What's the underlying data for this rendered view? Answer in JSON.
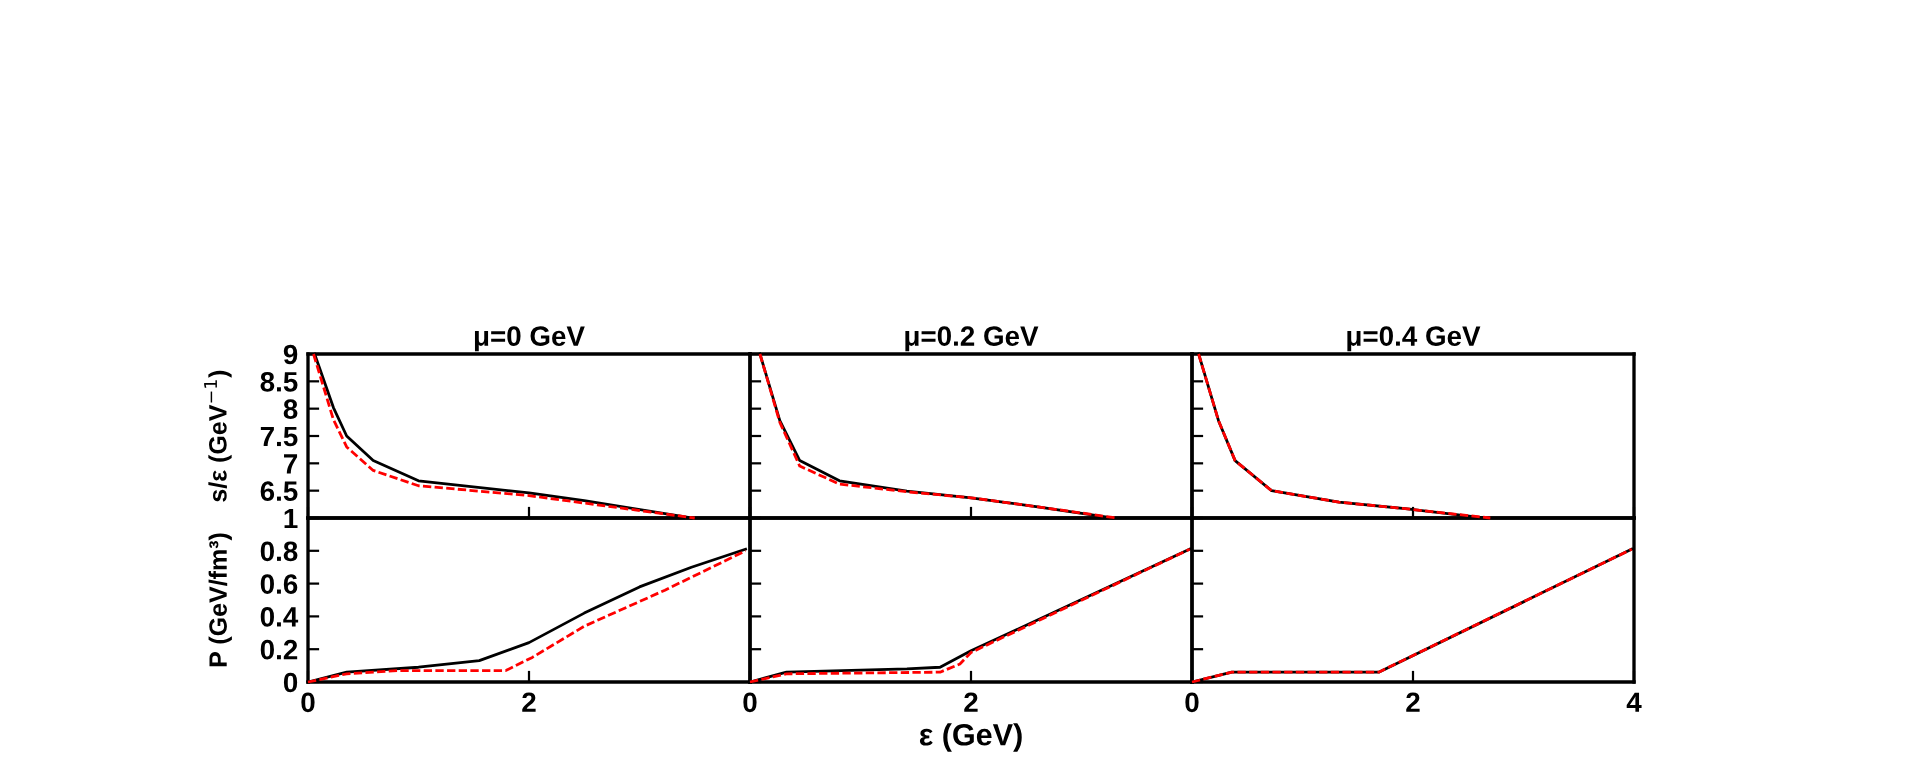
{
  "chart_data": [
    {
      "type": "line",
      "title": "μ=0 GeV",
      "ylabel": "s/ε (GeV$^{−1}$)",
      "xlim": [
        0,
        4
      ],
      "xticks": [
        0,
        2,
        4
      ],
      "ylim": [
        6,
        9
      ],
      "yticks": [
        {
          "value": 6,
          "label": null
        },
        6.5,
        7,
        7.5,
        8,
        8.5,
        9
      ],
      "tick_labels": "y",
      "series": [
        {
          "color": "#000000",
          "line_style": "solid",
          "x": [
            0.06,
            0.23,
            0.35,
            0.59,
            1.0,
            2.0,
            2.5,
            3.47
          ],
          "values": [
            9,
            8.02,
            7.5,
            7.05,
            6.68,
            6.46,
            6.32,
            6.0
          ]
        },
        {
          "color": "#ff0000",
          "line_style": "dashed",
          "x": [
            0.05,
            0.23,
            0.35,
            0.59,
            1.0,
            2.0,
            3.5
          ],
          "values": [
            9,
            7.8,
            7.3,
            6.87,
            6.59,
            6.41,
            6.0
          ]
        }
      ]
    },
    {
      "type": "line",
      "title": "μ=0.2 GeV",
      "xlim": [
        0,
        4
      ],
      "xticks": [
        0,
        2,
        4
      ],
      "ylim": [
        6,
        9
      ],
      "yticks": [
        6,
        6.5,
        7,
        7.5,
        8,
        8.5,
        9
      ],
      "tick_labels": false,
      "series": [
        {
          "color": "#000000",
          "line_style": "solid",
          "x": [
            0.09,
            0.27,
            0.45,
            0.81,
            1.42,
            2.0,
            2.62,
            3.28
          ],
          "values": [
            9,
            7.78,
            7.05,
            6.68,
            6.49,
            6.37,
            6.2,
            6.0
          ]
        },
        {
          "color": "#ff0000",
          "line_style": "dashed",
          "x": [
            0.09,
            0.27,
            0.45,
            0.81,
            1.42,
            2.0,
            2.62,
            3.32
          ],
          "values": [
            9,
            7.75,
            6.95,
            6.62,
            6.48,
            6.37,
            6.2,
            6.0
          ]
        }
      ]
    },
    {
      "type": "line",
      "title": "μ=0.4 GeV",
      "xlim": [
        0,
        4
      ],
      "xticks": [
        0,
        2,
        4
      ],
      "ylim": [
        6,
        9
      ],
      "yticks": [
        6,
        6.5,
        7,
        7.5,
        8,
        8.5,
        9
      ],
      "tick_labels": false,
      "series": [
        {
          "color": "#000000",
          "line_style": "solid",
          "x": [
            0.06,
            0.24,
            0.39,
            0.72,
            1.33,
            1.93,
            2.65
          ],
          "values": [
            9,
            7.78,
            7.05,
            6.5,
            6.29,
            6.17,
            6.0
          ]
        },
        {
          "color": "#ff0000",
          "line_style": "dashed",
          "x": [
            0.06,
            0.24,
            0.39,
            0.72,
            1.33,
            1.93,
            2.7
          ],
          "values": [
            9,
            7.78,
            7.05,
            6.5,
            6.29,
            6.17,
            6.0
          ]
        }
      ]
    },
    {
      "type": "line",
      "ylabel": "P (GeV/fm³)",
      "xlim": [
        0,
        4
      ],
      "xticks": [
        0,
        2,
        {
          "value": 4,
          "label": null
        }
      ],
      "ylim": [
        0,
        1
      ],
      "yticks": [
        0,
        0.2,
        0.4,
        0.6,
        0.8,
        1
      ],
      "series": [
        {
          "color": "#000000",
          "line_style": "solid",
          "x": [
            0,
            0.35,
            1.0,
            1.55,
            2.0,
            2.5,
            3.0,
            3.47,
            3.96
          ],
          "values": [
            0,
            0.06,
            0.09,
            0.13,
            0.24,
            0.42,
            0.58,
            0.7,
            0.81
          ]
        },
        {
          "color": "#ff0000",
          "line_style": "dashed",
          "x": [
            0,
            0.35,
            0.83,
            1.79,
            2.03,
            2.5,
            3.23,
            3.96
          ],
          "values": [
            0,
            0.05,
            0.07,
            0.07,
            0.15,
            0.34,
            0.56,
            0.8
          ]
        }
      ]
    },
    {
      "type": "line",
      "xlabel": "ε (GeV)",
      "xlim": [
        0,
        4
      ],
      "xticks": [
        0,
        2,
        {
          "value": 4,
          "label": null
        }
      ],
      "ylim": [
        0,
        1
      ],
      "yticks": [
        0,
        0.2,
        0.4,
        0.6,
        0.8,
        1
      ],
      "tick_labels": "x",
      "series": [
        {
          "color": "#000000",
          "line_style": "solid",
          "x": [
            0,
            0.33,
            1.42,
            1.72,
            2.0,
            3.98
          ],
          "values": [
            0,
            0.06,
            0.08,
            0.09,
            0.19,
            0.81
          ]
        },
        {
          "color": "#ff0000",
          "line_style": "dashed",
          "x": [
            0,
            0.33,
            1.72,
            1.9,
            2.0,
            3.98
          ],
          "values": [
            0,
            0.05,
            0.06,
            0.11,
            0.18,
            0.81
          ]
        }
      ]
    },
    {
      "type": "line",
      "xlim": [
        0,
        4
      ],
      "xticks": [
        0,
        2,
        4
      ],
      "ylim": [
        0,
        1
      ],
      "yticks": [
        0,
        0.2,
        0.4,
        0.6,
        0.8,
        1
      ],
      "tick_labels": "x",
      "series": [
        {
          "color": "#000000",
          "line_style": "solid",
          "x": [
            0,
            0.36,
            1.69,
            3.98
          ],
          "values": [
            0,
            0.06,
            0.06,
            0.81
          ]
        },
        {
          "color": "#ff0000",
          "line_style": "dashed",
          "x": [
            0,
            0.36,
            1.69,
            3.98
          ],
          "values": [
            0,
            0.06,
            0.06,
            0.81
          ]
        }
      ]
    }
  ]
}
